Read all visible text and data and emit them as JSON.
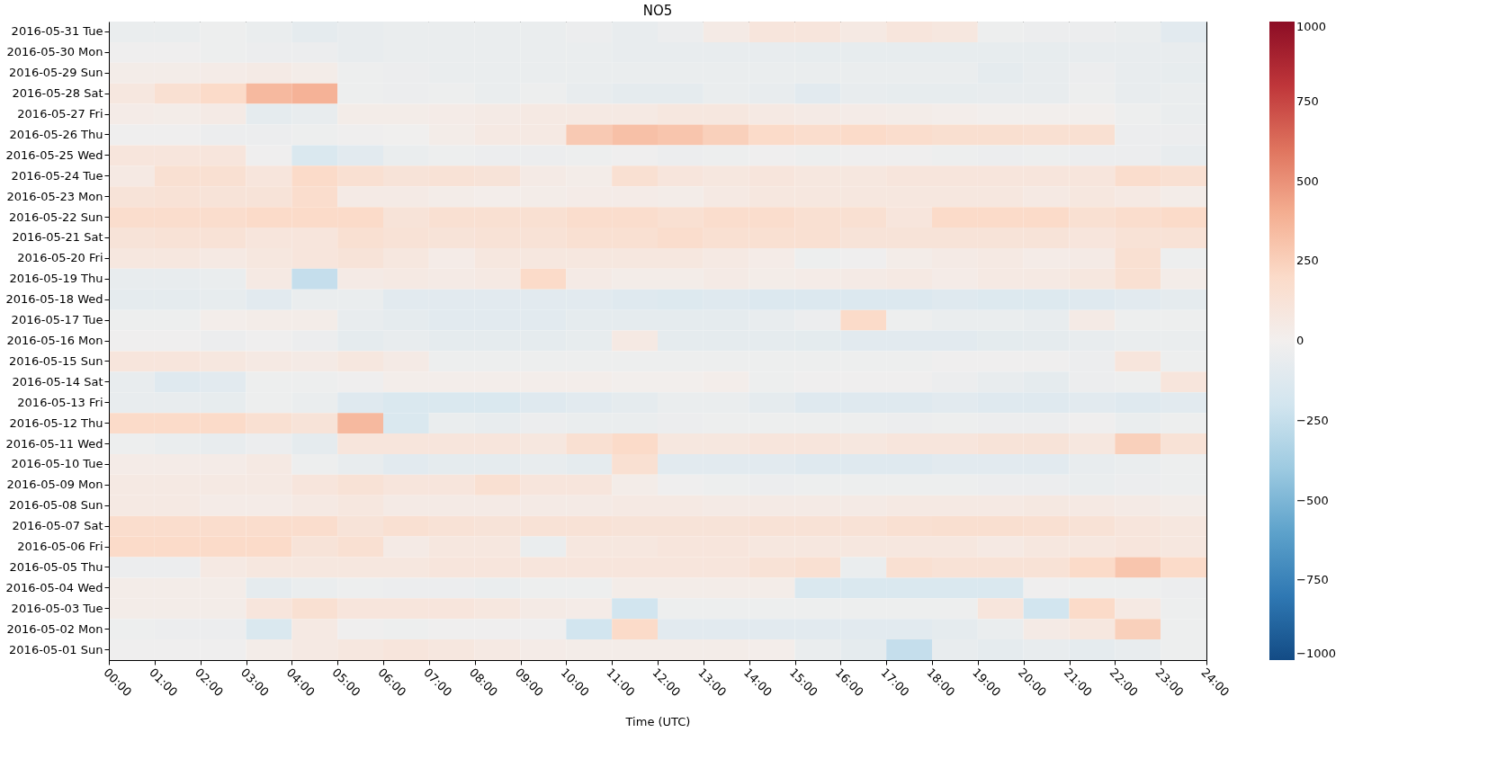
{
  "chart_data": {
    "type": "heatmap",
    "title": "NO5",
    "xlabel": "Time (UTC)",
    "x": [
      0.5,
      1.5,
      2.5,
      3.5,
      4.5,
      5.5,
      6.5,
      7.5,
      8.5,
      9.5,
      10.5,
      11.5,
      12.5,
      13.5,
      14.5,
      15.5,
      16.5,
      17.5,
      18.5,
      19.5,
      20.5,
      21.5,
      22.5,
      23.5
    ],
    "xlim": [
      0,
      24
    ],
    "xticks": [
      {
        "value": 0,
        "label": "00:00"
      },
      {
        "value": 1,
        "label": "01:00"
      },
      {
        "value": 2,
        "label": "02:00"
      },
      {
        "value": 3,
        "label": "03:00"
      },
      {
        "value": 4,
        "label": "04:00"
      },
      {
        "value": 5,
        "label": "05:00"
      },
      {
        "value": 6,
        "label": "06:00"
      },
      {
        "value": 7,
        "label": "07:00"
      },
      {
        "value": 8,
        "label": "08:00"
      },
      {
        "value": 9,
        "label": "09:00"
      },
      {
        "value": 10,
        "label": "10:00"
      },
      {
        "value": 11,
        "label": "11:00"
      },
      {
        "value": 12,
        "label": "12:00"
      },
      {
        "value": 13,
        "label": "13:00"
      },
      {
        "value": 14,
        "label": "14:00"
      },
      {
        "value": 15,
        "label": "15:00"
      },
      {
        "value": 16,
        "label": "16:00"
      },
      {
        "value": 17,
        "label": "17:00"
      },
      {
        "value": 18,
        "label": "18:00"
      },
      {
        "value": 19,
        "label": "19:00"
      },
      {
        "value": 20,
        "label": "20:00"
      },
      {
        "value": 21,
        "label": "21:00"
      },
      {
        "value": 22,
        "label": "22:00"
      },
      {
        "value": 23,
        "label": "23:00"
      },
      {
        "value": 24,
        "label": "24:00"
      }
    ],
    "y_categories": [
      "2016-05-31 Tue",
      "2016-05-30 Mon",
      "2016-05-29 Sun",
      "2016-05-28 Sat",
      "2016-05-27 Fri",
      "2016-05-26 Thu",
      "2016-05-25 Wed",
      "2016-05-24 Tue",
      "2016-05-23 Mon",
      "2016-05-22 Sun",
      "2016-05-21 Sat",
      "2016-05-20 Fri",
      "2016-05-19 Thu",
      "2016-05-18 Wed",
      "2016-05-17 Tue",
      "2016-05-16 Mon",
      "2016-05-15 Sun",
      "2016-05-14 Sat",
      "2016-05-13 Fri",
      "2016-05-12 Thu",
      "2016-05-11 Wed",
      "2016-05-10 Tue",
      "2016-05-09 Mon",
      "2016-05-08 Sun",
      "2016-05-07 Sat",
      "2016-05-06 Fri",
      "2016-05-05 Thu",
      "2016-05-04 Wed",
      "2016-05-03 Tue",
      "2016-05-02 Mon",
      "2016-05-01 Sun"
    ],
    "cells": [
      [
        -50,
        -50,
        -30,
        -50,
        -80,
        -60,
        -50,
        -50,
        -50,
        -50,
        -40,
        -60,
        -40,
        50,
        100,
        100,
        60,
        100,
        80,
        -30,
        -40,
        -40,
        -50,
        -100
      ],
      [
        -20,
        -20,
        -30,
        -40,
        -40,
        -60,
        -50,
        -50,
        -50,
        -50,
        -50,
        -60,
        -60,
        -60,
        -60,
        -70,
        -70,
        -70,
        -70,
        -70,
        -70,
        -60,
        -60,
        -60
      ],
      [
        30,
        30,
        40,
        50,
        30,
        -30,
        -40,
        -50,
        -50,
        -50,
        -50,
        -50,
        -50,
        -50,
        -50,
        -50,
        -50,
        -50,
        -50,
        -80,
        -60,
        -40,
        -60,
        -70
      ],
      [
        80,
        150,
        200,
        350,
        380,
        -30,
        -40,
        -30,
        -50,
        -30,
        -60,
        -80,
        -80,
        -50,
        -60,
        -100,
        -60,
        -70,
        -70,
        -60,
        -60,
        -30,
        -60,
        -50
      ],
      [
        40,
        30,
        50,
        -80,
        -60,
        30,
        30,
        40,
        50,
        60,
        60,
        60,
        80,
        80,
        60,
        50,
        40,
        30,
        20,
        10,
        10,
        10,
        -30,
        -50
      ],
      [
        -20,
        -20,
        -40,
        -40,
        -30,
        -20,
        -10,
        30,
        60,
        60,
        280,
        320,
        300,
        250,
        200,
        180,
        200,
        180,
        160,
        160,
        150,
        150,
        -40,
        -40
      ],
      [
        100,
        100,
        100,
        -20,
        -150,
        -100,
        -50,
        -30,
        -40,
        -40,
        -30,
        -20,
        -40,
        -30,
        -20,
        -30,
        -20,
        -20,
        -30,
        -40,
        -30,
        -40,
        -40,
        -60
      ],
      [
        60,
        150,
        150,
        100,
        200,
        150,
        120,
        130,
        120,
        50,
        30,
        150,
        100,
        80,
        100,
        80,
        80,
        100,
        100,
        100,
        100,
        100,
        180,
        150
      ],
      [
        120,
        130,
        120,
        120,
        180,
        50,
        50,
        30,
        20,
        30,
        40,
        40,
        30,
        60,
        80,
        80,
        80,
        80,
        80,
        80,
        60,
        80,
        60,
        30
      ],
      [
        180,
        180,
        180,
        200,
        200,
        200,
        120,
        150,
        150,
        150,
        180,
        180,
        150,
        180,
        180,
        150,
        150,
        100,
        200,
        200,
        200,
        150,
        180,
        200
      ],
      [
        120,
        130,
        130,
        100,
        100,
        150,
        130,
        120,
        130,
        130,
        150,
        150,
        180,
        150,
        150,
        150,
        120,
        120,
        120,
        120,
        120,
        100,
        130,
        130
      ],
      [
        80,
        80,
        60,
        80,
        100,
        120,
        80,
        40,
        80,
        80,
        80,
        80,
        80,
        60,
        40,
        -30,
        -20,
        30,
        50,
        60,
        40,
        50,
        150,
        -30
      ],
      [
        -60,
        -60,
        -50,
        60,
        -250,
        50,
        60,
        50,
        60,
        200,
        50,
        30,
        30,
        50,
        30,
        40,
        50,
        60,
        40,
        60,
        60,
        80,
        150,
        30
      ],
      [
        -80,
        -80,
        -70,
        -100,
        -50,
        -50,
        -100,
        -100,
        -100,
        -100,
        -100,
        -120,
        -130,
        -120,
        -140,
        -140,
        -140,
        -140,
        -120,
        -130,
        -130,
        -120,
        -100,
        -80
      ],
      [
        -30,
        -30,
        20,
        30,
        30,
        -60,
        -80,
        -100,
        -100,
        -100,
        -80,
        -80,
        -80,
        -80,
        -60,
        -40,
        200,
        -30,
        -50,
        -50,
        -60,
        50,
        -30,
        -30
      ],
      [
        -20,
        -20,
        -40,
        -20,
        -40,
        -80,
        -60,
        -80,
        -80,
        -80,
        -70,
        60,
        -80,
        -80,
        -80,
        -90,
        -100,
        -100,
        -100,
        -90,
        -80,
        -60,
        -50,
        -50
      ],
      [
        100,
        100,
        80,
        60,
        50,
        80,
        50,
        -30,
        -30,
        -30,
        -30,
        -30,
        -30,
        -30,
        -30,
        -30,
        -30,
        -30,
        -20,
        -20,
        -20,
        -40,
        100,
        -30
      ],
      [
        -60,
        -120,
        -100,
        -30,
        -30,
        -20,
        20,
        20,
        20,
        20,
        20,
        10,
        10,
        20,
        -30,
        -20,
        -20,
        -20,
        -40,
        -60,
        -80,
        -40,
        -30,
        100
      ],
      [
        -60,
        -60,
        -70,
        -30,
        -50,
        -120,
        -150,
        -150,
        -150,
        -120,
        -100,
        -80,
        -50,
        -50,
        -80,
        -120,
        -120,
        -120,
        -100,
        -120,
        -120,
        -100,
        -120,
        -100
      ],
      [
        200,
        200,
        200,
        150,
        120,
        350,
        -150,
        -50,
        -60,
        -40,
        -50,
        -50,
        -40,
        -30,
        -30,
        -30,
        -30,
        -40,
        -30,
        -40,
        -40,
        -20,
        -50,
        -30
      ],
      [
        -30,
        -50,
        -60,
        -40,
        -80,
        100,
        100,
        100,
        100,
        80,
        150,
        200,
        80,
        80,
        100,
        100,
        80,
        100,
        100,
        120,
        120,
        80,
        250,
        130
      ],
      [
        40,
        40,
        40,
        60,
        -30,
        -60,
        -100,
        -80,
        -80,
        -60,
        -80,
        150,
        -100,
        -100,
        -100,
        -120,
        -120,
        -120,
        -100,
        -100,
        -100,
        -60,
        -50,
        -30
      ],
      [
        60,
        60,
        60,
        60,
        100,
        130,
        100,
        100,
        150,
        100,
        100,
        30,
        -20,
        -30,
        -40,
        -30,
        -30,
        -30,
        -30,
        -40,
        -40,
        -50,
        -40,
        -30
      ],
      [
        60,
        60,
        40,
        40,
        60,
        80,
        50,
        50,
        50,
        50,
        50,
        60,
        60,
        50,
        50,
        50,
        50,
        60,
        60,
        60,
        70,
        60,
        50,
        30
      ],
      [
        180,
        180,
        180,
        180,
        180,
        120,
        150,
        130,
        120,
        130,
        130,
        120,
        120,
        120,
        130,
        130,
        130,
        150,
        160,
        160,
        150,
        130,
        100,
        80
      ],
      [
        200,
        200,
        200,
        200,
        120,
        150,
        50,
        80,
        80,
        -50,
        80,
        80,
        100,
        100,
        80,
        80,
        80,
        80,
        80,
        60,
        80,
        80,
        100,
        80
      ],
      [
        -40,
        -40,
        60,
        80,
        80,
        80,
        80,
        100,
        100,
        100,
        100,
        100,
        100,
        100,
        130,
        150,
        -50,
        150,
        130,
        130,
        130,
        200,
        300,
        200
      ],
      [
        30,
        30,
        30,
        -80,
        -50,
        -30,
        -40,
        -40,
        -50,
        -30,
        -30,
        30,
        30,
        30,
        30,
        -150,
        -150,
        -150,
        -150,
        -150,
        -20,
        -30,
        -30,
        -40
      ],
      [
        30,
        30,
        30,
        100,
        150,
        100,
        100,
        100,
        80,
        50,
        40,
        -200,
        -30,
        -30,
        -30,
        -30,
        -30,
        -30,
        -30,
        100,
        -200,
        200,
        60,
        -30
      ],
      [
        -30,
        -40,
        -40,
        -150,
        60,
        -20,
        -30,
        -20,
        -20,
        -20,
        -200,
        200,
        -100,
        -100,
        -100,
        -100,
        -100,
        -100,
        -80,
        -50,
        50,
        80,
        250,
        -30
      ],
      [
        -20,
        -20,
        -20,
        30,
        60,
        80,
        100,
        80,
        60,
        40,
        30,
        30,
        30,
        30,
        20,
        -50,
        -80,
        -250,
        -60,
        -80,
        -60,
        -80,
        -60,
        -30
      ]
    ],
    "clim": [
      -1000,
      1000
    ],
    "cticks": [
      {
        "value": -1000,
        "label": "−1000"
      },
      {
        "value": -750,
        "label": "−750"
      },
      {
        "value": -500,
        "label": "−500"
      },
      {
        "value": -250,
        "label": "−250"
      },
      0,
      250,
      500,
      750,
      1000
    ],
    "grid": false
  }
}
